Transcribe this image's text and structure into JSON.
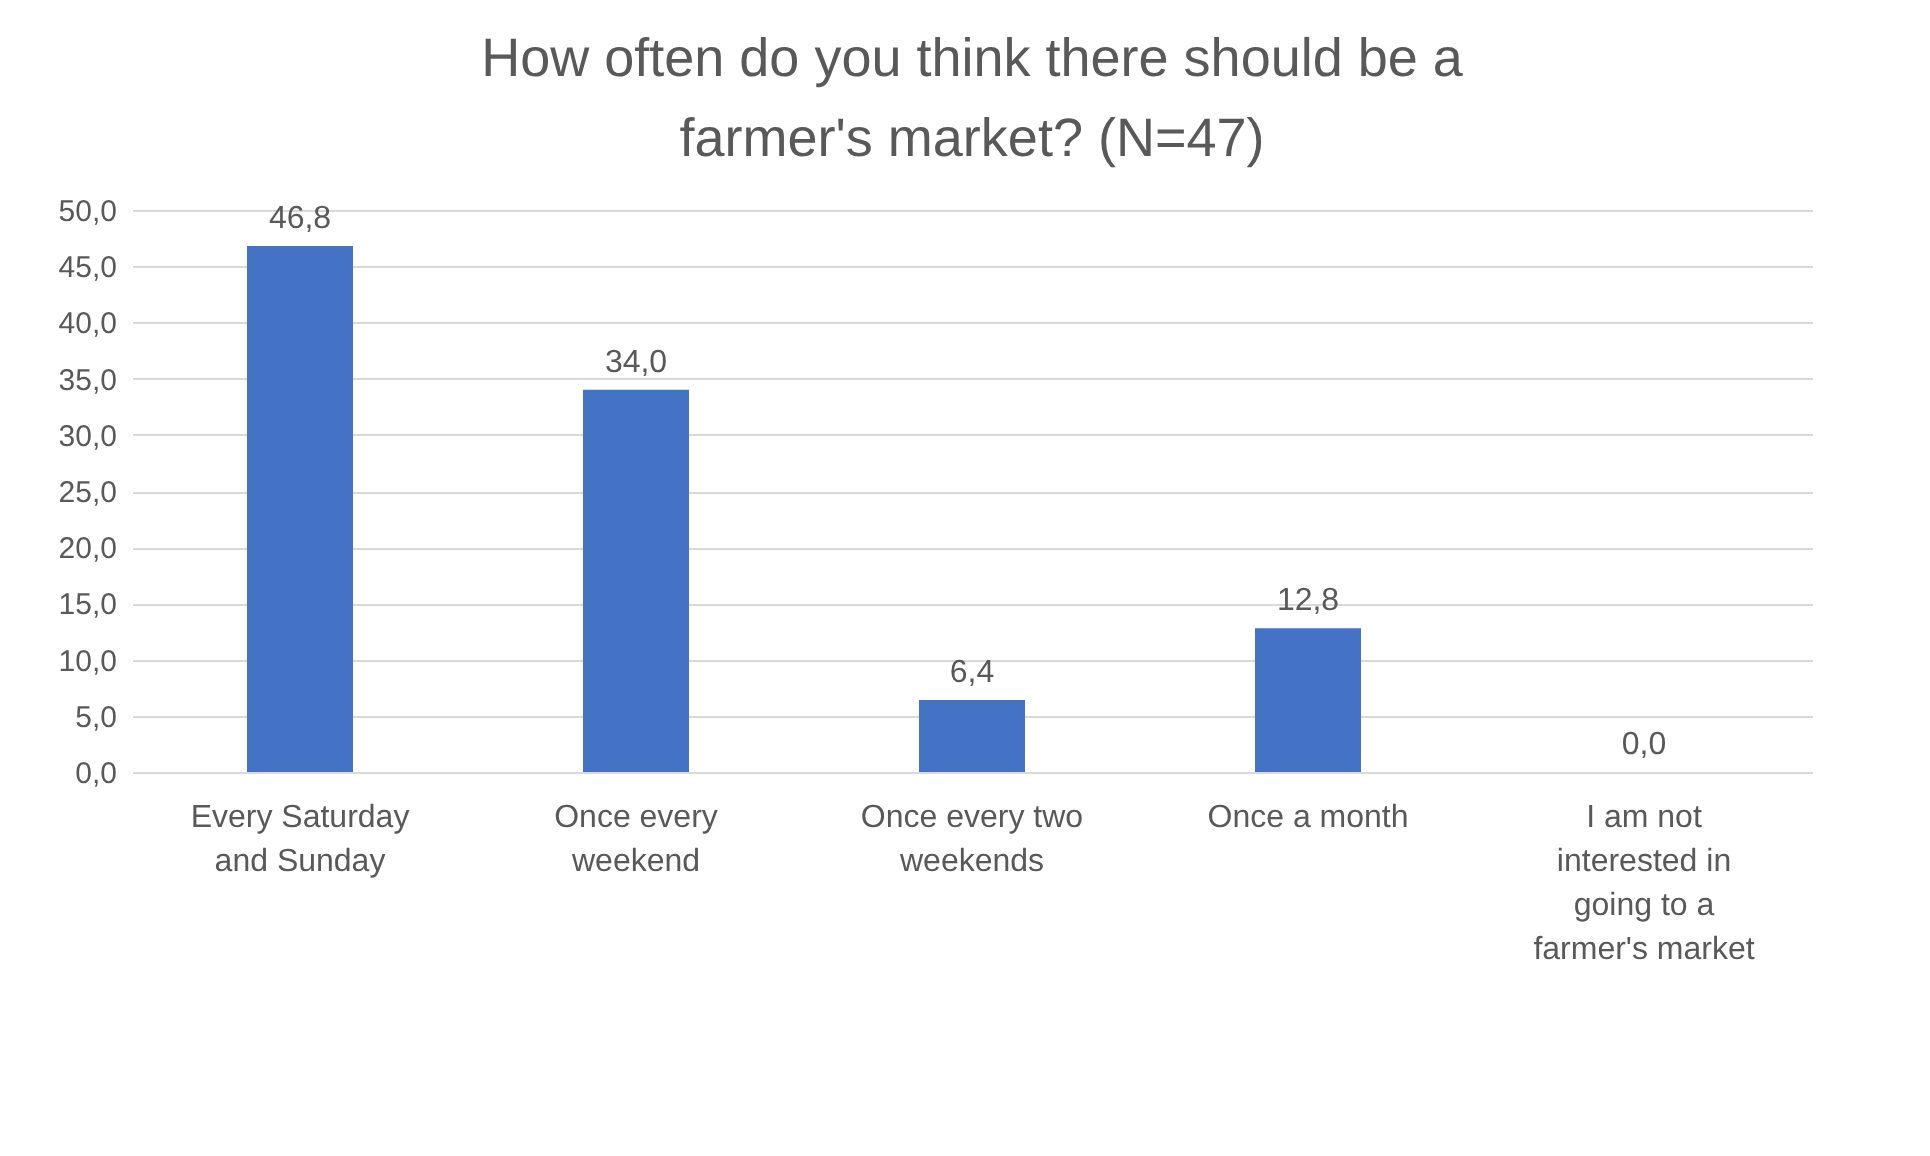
{
  "chart_data": {
    "type": "bar",
    "title": "How often do you think there should be a farmer's market? (N=47)",
    "categories": [
      "Every Saturday and Sunday",
      "Once every weekend",
      "Once every two weekends",
      "Once a month",
      "I am not interested in going to a farmer's market"
    ],
    "values": [
      46.8,
      34.0,
      6.4,
      12.8,
      0.0
    ],
    "value_labels": [
      "46,8",
      "34,0",
      "6,4",
      "12,8",
      "0,0"
    ],
    "color": "#4472c4",
    "ylim": [
      0,
      50
    ],
    "yticks": [
      {
        "value": 0,
        "label": "0,0"
      },
      {
        "value": 5,
        "label": "5,0"
      },
      {
        "value": 10,
        "label": "10,0"
      },
      {
        "value": 15,
        "label": "15,0"
      },
      {
        "value": 20,
        "label": "20,0"
      },
      {
        "value": 25,
        "label": "25,0"
      },
      {
        "value": 30,
        "label": "30,0"
      },
      {
        "value": 35,
        "label": "35,0"
      },
      {
        "value": 40,
        "label": "40,0"
      },
      {
        "value": 45,
        "label": "45,0"
      },
      {
        "value": 50,
        "label": "50,0"
      }
    ],
    "grid": "y"
  }
}
